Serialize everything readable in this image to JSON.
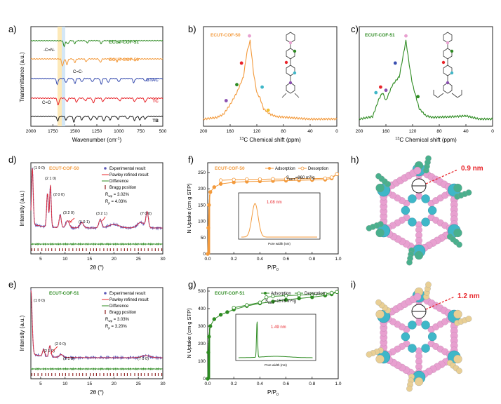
{
  "panel_labels": [
    "a)",
    "b)",
    "c)",
    "d)",
    "e)",
    "f)",
    "g)",
    "h)",
    "i)"
  ],
  "colors": {
    "green": "#2e8b22",
    "orange": "#f39a3c",
    "blue": "#3a4fb0",
    "red": "#e8242a",
    "black": "#222222",
    "brick": "#8b1a1a",
    "pink": "#e8a0d0",
    "cyan": "#3fb7c8",
    "teal": "#49b08d",
    "tan": "#e9cf94",
    "purple": "#8a4fb0"
  },
  "panel_a": {
    "xlabel": "Wavenumber (cm",
    "xlabel_sup": "-1",
    "xlabel_end": ")",
    "ylabel": "Transmittance (a.u.)",
    "ticks": [
      "2000",
      "1750",
      "1500",
      "1250",
      "1000",
      "750",
      "500"
    ],
    "labels": [
      "ECUT-COF-51",
      "ECUT-COF-50",
      "BTAC",
      "TC",
      "TB"
    ],
    "annotations": [
      "-C=N-",
      "C=C-",
      "C=O"
    ]
  },
  "panel_b": {
    "title": "ECUT-COF-50",
    "xlabel": "C Chemical shift (ppm)",
    "xlabel_sup": "13",
    "ticks": [
      "200",
      "160",
      "120",
      "80",
      "40",
      "0"
    ]
  },
  "panel_c": {
    "title": "ECUT-COF-51",
    "xlabel": "C Chemical shift (ppm)",
    "xlabel_sup": "13",
    "ticks": [
      "200",
      "160",
      "120",
      "80",
      "40",
      "0"
    ]
  },
  "panel_d": {
    "title": "ECUT-COF-50",
    "legend": [
      "Experimental result",
      "Pawley refined result",
      "Difference",
      "Bragg position"
    ],
    "rwp": "R",
    "rwp_sub": "wp",
    "rwp_val": " = 3.02%",
    "rp": "R",
    "rp_sub": "p",
    "rp_val": " = 4.03%",
    "peaks": [
      "(1 0 0)",
      "(2 1 0)",
      "(2 0 0)",
      "(3 2 0)",
      "(1 0 1)",
      "(3 2 1)",
      "(7 0 0)"
    ],
    "xlabel": "2θ (°)",
    "ylabel": "Intensity (a.u.)",
    "ticks": [
      "5",
      "10",
      "15",
      "20",
      "25",
      "30"
    ]
  },
  "panel_e": {
    "title": "ECUT-COF-51",
    "legend": [
      "Experimental result",
      "Pawley refined result",
      "Difference",
      "Bragg position"
    ],
    "rwp": "R",
    "rwp_sub": "wp",
    "rwp_val": " = 3.03%",
    "rp": "R",
    "rp_sub": "p",
    "rp_val": " = 3.20%",
    "peaks": [
      "(1 0 0)",
      "(2 1 0)",
      "(2 0 0)",
      "(2 1 0)",
      "(7 0 0)"
    ],
    "xlabel": "2θ (°)",
    "ylabel": "Intensity (a.u.)",
    "ticks": [
      "5",
      "10",
      "15",
      "20",
      "25",
      "30"
    ]
  },
  "panel_f": {
    "title": "ECUT-COF-50",
    "legend": [
      "Adsorption",
      "Desorption"
    ],
    "bet": "S",
    "bet_sub": "BET",
    "bet_val": "=860 m",
    "bet_unit_sup": "2",
    "bet_unit_end": "/g",
    "xlabel": "P/P",
    "xlabel_sub": "0",
    "ylabel": "N  Uptake (cm  g  STP)",
    "yticks": [
      "0",
      "50",
      "100",
      "150",
      "200",
      "250"
    ],
    "xticks": [
      "0.0",
      "0.2",
      "0.4",
      "0.6",
      "0.8",
      "1.0"
    ],
    "inset_label": "1.08 nm",
    "inset_xlabel": "Pore width (nm)"
  },
  "panel_g": {
    "title": "ECUT-COF-51",
    "legend": [
      "Adsorption",
      "Desorption"
    ],
    "bet": "S",
    "bet_sub": "BET",
    "bet_val": "=1578 m",
    "bet_unit_sup": "2",
    "bet_unit_end": "/g",
    "xlabel": "P/P",
    "xlabel_sub": "0",
    "ylabel": "N  Uptake (cm  g  STP)",
    "yticks": [
      "0",
      "100",
      "200",
      "300",
      "400",
      "500"
    ],
    "xticks": [
      "0.0",
      "0.2",
      "0.4",
      "0.6",
      "0.8",
      "1.0"
    ],
    "inset_label": "1.49 nm",
    "inset_xlabel": "Pore width (nm)"
  },
  "panel_h": {
    "label": "0.9 nm"
  },
  "panel_i": {
    "label": "1.2 nm"
  },
  "chart_data": [
    {
      "type": "line",
      "panel": "a",
      "x_range": [
        2000,
        500
      ],
      "series_names": [
        "ECUT-COF-51",
        "ECUT-COF-50",
        "BTAC",
        "TC",
        "TB"
      ]
    },
    {
      "type": "line",
      "panel": "b",
      "x": [
        200,
        180,
        170,
        160,
        150,
        140,
        135,
        130,
        125,
        120,
        115,
        110,
        100,
        90,
        60,
        40,
        0
      ],
      "y": [
        0.02,
        0.04,
        0.08,
        0.2,
        0.35,
        0.55,
        0.85,
        1.0,
        0.6,
        0.35,
        0.28,
        0.15,
        0.08,
        0.05,
        0.03,
        0.02,
        0.02
      ]
    },
    {
      "type": "line",
      "panel": "c",
      "x": [
        200,
        180,
        170,
        165,
        160,
        150,
        140,
        130,
        125,
        120,
        115,
        110,
        100,
        90,
        60,
        40,
        20,
        0
      ],
      "y": [
        0.02,
        0.05,
        0.28,
        0.35,
        0.25,
        0.45,
        0.55,
        1.0,
        0.7,
        0.45,
        0.3,
        0.15,
        0.06,
        0.04,
        0.05,
        0.06,
        0.02,
        0.02
      ]
    },
    {
      "type": "line",
      "panel": "d",
      "x_range": [
        3,
        30
      ],
      "peaks_2theta": [
        3.3,
        6.5,
        7.0,
        10.4,
        13.5,
        17.2,
        26.8
      ]
    },
    {
      "type": "line",
      "panel": "e",
      "x_range": [
        3,
        30
      ],
      "peaks_2theta": [
        3.0,
        5.5,
        6.9,
        9.2,
        26.5
      ]
    },
    {
      "type": "line",
      "panel": "f",
      "x_range": [
        0,
        1.0
      ],
      "y_range": [
        0,
        280
      ],
      "series": [
        {
          "name": "Adsorption",
          "x": [
            0.0,
            0.005,
            0.01,
            0.02,
            0.05,
            0.1,
            0.2,
            0.3,
            0.4,
            0.5,
            0.6,
            0.7,
            0.8,
            0.9,
            0.95,
            0.99
          ],
          "y": [
            0,
            80,
            150,
            190,
            205,
            215,
            220,
            222,
            223,
            224,
            225,
            226,
            227,
            228,
            232,
            245
          ]
        },
        {
          "name": "Desorption",
          "x": [
            0.99,
            0.95,
            0.9,
            0.8,
            0.7,
            0.6,
            0.5,
            0.4,
            0.3,
            0.2,
            0.1
          ],
          "y": [
            245,
            235,
            232,
            231,
            231,
            230,
            230,
            229,
            229,
            228,
            226
          ]
        }
      ],
      "inset_peak_nm": 1.08
    },
    {
      "type": "line",
      "panel": "g",
      "x_range": [
        0,
        1.0
      ],
      "y_range": [
        0,
        520
      ],
      "series": [
        {
          "name": "Adsorption",
          "x": [
            0.0,
            0.005,
            0.01,
            0.02,
            0.05,
            0.1,
            0.15,
            0.2,
            0.3,
            0.4,
            0.5,
            0.6,
            0.7,
            0.8,
            0.9,
            0.95,
            0.99
          ],
          "y": [
            0,
            150,
            240,
            300,
            340,
            365,
            380,
            395,
            415,
            430,
            440,
            450,
            458,
            465,
            475,
            482,
            495
          ]
        },
        {
          "name": "Desorption",
          "x": [
            0.99,
            0.95,
            0.9,
            0.8,
            0.7,
            0.6,
            0.5,
            0.45,
            0.4,
            0.3,
            0.2
          ],
          "y": [
            495,
            490,
            485,
            480,
            477,
            474,
            470,
            465,
            435,
            420,
            405
          ]
        }
      ],
      "inset_peak_nm": 1.49
    }
  ]
}
